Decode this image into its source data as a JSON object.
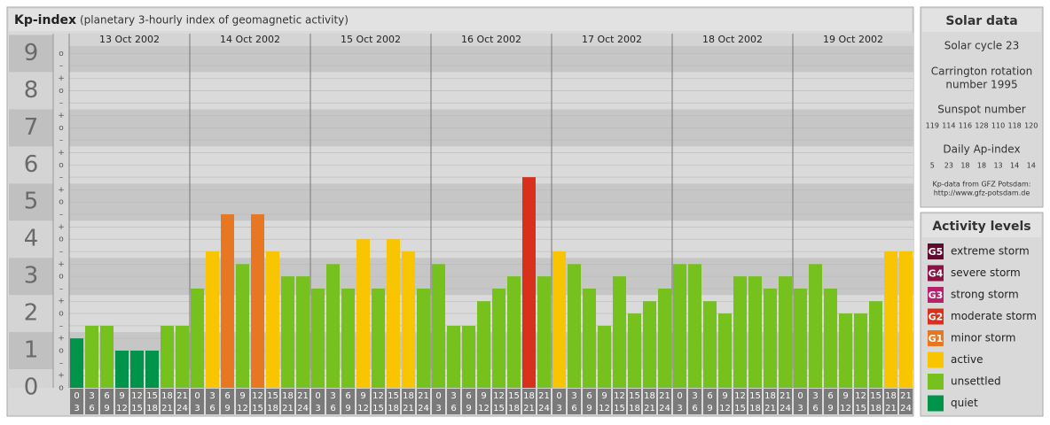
{
  "chart_data": {
    "type": "bar",
    "title": "Kp-index",
    "subtitle": "(planetary 3-hourly index of geomagnetic activity)",
    "days": [
      "13 Oct 2002",
      "14 Oct 2002",
      "15 Oct 2002",
      "16 Oct 2002",
      "17 Oct 2002",
      "18 Oct 2002",
      "19 Oct 2002"
    ],
    "intervals": [
      [
        0,
        3
      ],
      [
        3,
        6
      ],
      [
        6,
        9
      ],
      [
        9,
        12
      ],
      [
        12,
        15
      ],
      [
        15,
        18
      ],
      [
        18,
        21
      ],
      [
        21,
        24
      ]
    ],
    "values": [
      1.33,
      1.67,
      1.67,
      1,
      1,
      1,
      1.67,
      1.67,
      2.67,
      3.67,
      4.67,
      3.33,
      4.67,
      3.67,
      3,
      3,
      2.67,
      3.33,
      2.67,
      4,
      2.67,
      4,
      3.67,
      2.67,
      3.33,
      1.67,
      1.67,
      2.33,
      2.67,
      3,
      5.67,
      3,
      3.67,
      3.33,
      2.67,
      1.67,
      3,
      2,
      2.33,
      2.67,
      3.33,
      3.33,
      2.33,
      2,
      3,
      3,
      2.67,
      3,
      2.67,
      3.33,
      2.67,
      2,
      2,
      2.33,
      3.67,
      3.67
    ],
    "colors": [
      "#00934a",
      "#77c11f",
      "#77c11f",
      "#00934a",
      "#00934a",
      "#00934a",
      "#77c11f",
      "#77c11f",
      "#77c11f",
      "#f9c400",
      "#e87722",
      "#77c11f",
      "#e87722",
      "#f9c400",
      "#77c11f",
      "#77c11f",
      "#77c11f",
      "#77c11f",
      "#77c11f",
      "#f9c400",
      "#77c11f",
      "#f9c400",
      "#f9c400",
      "#77c11f",
      "#77c11f",
      "#77c11f",
      "#77c11f",
      "#77c11f",
      "#77c11f",
      "#77c11f",
      "#d9301c",
      "#77c11f",
      "#f9c400",
      "#77c11f",
      "#77c11f",
      "#77c11f",
      "#77c11f",
      "#77c11f",
      "#77c11f",
      "#77c11f",
      "#77c11f",
      "#77c11f",
      "#77c11f",
      "#77c11f",
      "#77c11f",
      "#77c11f",
      "#77c11f",
      "#77c11f",
      "#77c11f",
      "#77c11f",
      "#77c11f",
      "#77c11f",
      "#77c11f",
      "#77c11f",
      "#f9c400",
      "#f9c400"
    ],
    "ylim": [
      0,
      9.2
    ],
    "yticks": [
      0,
      1,
      2,
      3,
      4,
      5,
      6,
      7,
      8,
      9
    ],
    "yticks_minor": [
      {
        "value": 0,
        "label": "o"
      },
      {
        "value": 0.33,
        "label": "+"
      },
      {
        "value": 0.67,
        "label": "–"
      },
      {
        "value": 1,
        "label": "o"
      },
      {
        "value": 1.33,
        "label": "+"
      },
      {
        "value": 1.67,
        "label": "–"
      },
      {
        "value": 2,
        "label": "o"
      },
      {
        "value": 2.33,
        "label": "+"
      },
      {
        "value": 2.67,
        "label": "–"
      },
      {
        "value": 3,
        "label": "o"
      },
      {
        "value": 3.33,
        "label": "+"
      },
      {
        "value": 3.67,
        "label": "–"
      },
      {
        "value": 4,
        "label": "o"
      },
      {
        "value": 4.33,
        "label": "+"
      },
      {
        "value": 4.67,
        "label": "–"
      },
      {
        "value": 5,
        "label": "o"
      },
      {
        "value": 5.33,
        "label": "+"
      },
      {
        "value": 5.67,
        "label": "–"
      },
      {
        "value": 6,
        "label": "o"
      },
      {
        "value": 6.33,
        "label": "+"
      },
      {
        "value": 6.67,
        "label": "–"
      },
      {
        "value": 7,
        "label": "o"
      },
      {
        "value": 7.33,
        "label": "+"
      },
      {
        "value": 7.67,
        "label": "–"
      },
      {
        "value": 8,
        "label": "o"
      },
      {
        "value": 8.33,
        "label": "+"
      },
      {
        "value": 8.67,
        "label": "–"
      },
      {
        "value": 9,
        "label": "o"
      }
    ],
    "grid": true
  },
  "solar_data": {
    "title": "Solar data",
    "cycle": "Solar cycle 23",
    "carrington": [
      "Carrington rotation",
      "number 1995"
    ],
    "sunspot_title": "Sunspot number",
    "sunspot": [
      119,
      114,
      116,
      128,
      110,
      118,
      120
    ],
    "ap_title": "Daily Ap-index",
    "ap": [
      5,
      23,
      18,
      18,
      13,
      14,
      14
    ],
    "source": [
      "Kp-data from GFZ Potsdam:",
      "http://www.gfz-potsdam.de"
    ]
  },
  "activity_levels": {
    "title": "Activity levels",
    "items": [
      {
        "badge": "G5",
        "label": "extreme storm",
        "color": "#5e0a2c"
      },
      {
        "badge": "G4",
        "label": "severe storm",
        "color": "#8a1346"
      },
      {
        "badge": "G3",
        "label": "strong storm",
        "color": "#b5226a"
      },
      {
        "badge": "G2",
        "label": "moderate storm",
        "color": "#d9301c"
      },
      {
        "badge": "G1",
        "label": "minor storm",
        "color": "#e87722"
      },
      {
        "badge": null,
        "label": "active",
        "color": "#f9c400"
      },
      {
        "badge": null,
        "label": "unsettled",
        "color": "#77c11f"
      },
      {
        "badge": null,
        "label": "quiet",
        "color": "#00934a"
      }
    ]
  }
}
